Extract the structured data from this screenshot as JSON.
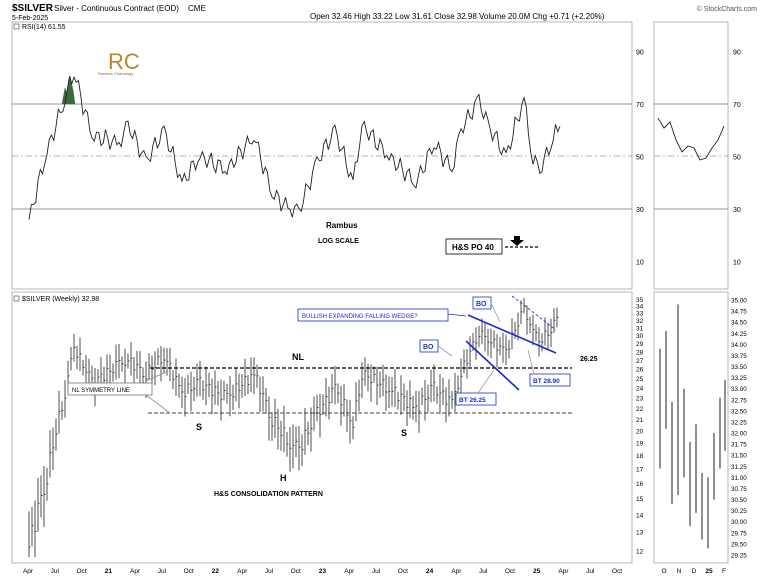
{
  "header": {
    "symbol": "$SILVER",
    "name": "Silver - Continuous Contract (EOD)",
    "exchange": "CME",
    "date": "5-Feb-2025",
    "source": "© StockCharts.com",
    "ohlc": "Open 32.46  High 33.22  Low 31.61  Close 32.98  Volume 20.0M  Chg +0.71 (+2.20%)"
  },
  "watermark": {
    "initials": "RC",
    "text": "Rambus Chartology"
  },
  "rsi_panel": {
    "label": "RSI(14) 61.55",
    "author": "Rambus",
    "scale_note": "LOG SCALE",
    "po_label": "H&S PO 40",
    "ticks": [
      "90",
      "70",
      "50",
      "30",
      "10"
    ]
  },
  "price_panel": {
    "label": "$SILVER (Weekly) 32.98",
    "ticks": [
      "35",
      "34",
      "33",
      "32",
      "31",
      "30",
      "29",
      "28",
      "27",
      "26",
      "25",
      "24",
      "23",
      "22",
      "21",
      "20",
      "19",
      "18",
      "17",
      "16",
      "15",
      "14",
      "13",
      "12"
    ],
    "annotations": {
      "wedge": "BULLISH EXPANDING FALLING WEDGE?",
      "bo1": "BO",
      "bo2": "BO",
      "nl": "NL",
      "nl_value": "26.25",
      "symmetry": "NL SYMMETRY LINE",
      "bt1": "BT 26.25",
      "bt2": "BT 28.90",
      "s_left": "S",
      "s_right": "S",
      "head": "H",
      "pattern": "H&S CONSOLIDATION PATTERN"
    }
  },
  "x_axis": [
    "Apr",
    "Jul",
    "Oct",
    "21",
    "Apr",
    "Jul",
    "Oct",
    "22",
    "Apr",
    "Jul",
    "Oct",
    "23",
    "Apr",
    "Jul",
    "Oct",
    "24",
    "Apr",
    "Jul",
    "Oct",
    "25",
    "Apr",
    "Jul",
    "Oct"
  ],
  "inset": {
    "ticks_rsi": [
      "90",
      "70",
      "50",
      "30",
      "10"
    ],
    "ticks_price": [
      "35.00",
      "34.75",
      "34.50",
      "34.25",
      "34.00",
      "33.75",
      "33.50",
      "33.25",
      "33.00",
      "32.75",
      "32.50",
      "32.25",
      "32.00",
      "31.75",
      "31.50",
      "31.25",
      "31.00",
      "30.75",
      "30.50",
      "30.25",
      "30.00",
      "29.75",
      "29.50",
      "29.25"
    ],
    "x_axis": [
      "O",
      "N",
      "D",
      "25",
      "F"
    ]
  },
  "chart_data": {
    "type": "line",
    "title": "$SILVER Silver - Continuous Contract (EOD) CME",
    "indicator": "RSI(14)",
    "rsi_last": 61.55,
    "rsi_range": [
      0,
      100
    ],
    "price_scale": "log",
    "price_range": [
      11.5,
      35.5
    ],
    "close_last": 32.98,
    "levels": {
      "neckline": 26.25,
      "symmetry_line": 21.4,
      "bt1": 26.25,
      "bt2": 28.9,
      "price_objective": 40
    },
    "series": [
      {
        "name": "$SILVER (Weekly)",
        "x": [
          "2020-03",
          "2020-05",
          "2020-07",
          "2020-08",
          "2020-10",
          "2021-01",
          "2021-02",
          "2021-04",
          "2021-06",
          "2021-08",
          "2021-10",
          "2022-01",
          "2022-04",
          "2022-06",
          "2022-08",
          "2022-09",
          "2022-11",
          "2023-01",
          "2023-03",
          "2023-04",
          "2023-07",
          "2023-10",
          "2023-12",
          "2024-02",
          "2024-03",
          "2024-05",
          "2024-06",
          "2024-08",
          "2024-10",
          "2024-11",
          "2024-12",
          "2025-01",
          "2025-02"
        ],
        "values": [
          12.2,
          16.5,
          23.5,
          28.5,
          24.5,
          26.5,
          27.0,
          25.5,
          27.5,
          23.5,
          24.5,
          23.0,
          25.5,
          21.0,
          19.0,
          18.5,
          21.5,
          24.0,
          20.5,
          25.5,
          24.0,
          22.0,
          24.0,
          22.5,
          25.5,
          30.5,
          29.5,
          28.0,
          33.5,
          30.5,
          29.5,
          31.0,
          32.98
        ]
      },
      {
        "name": "RSI(14)",
        "x": [
          "2020-03",
          "2020-05",
          "2020-07",
          "2020-08",
          "2020-10",
          "2021-01",
          "2021-02",
          "2021-04",
          "2021-06",
          "2021-08",
          "2021-10",
          "2022-01",
          "2022-04",
          "2022-06",
          "2022-08",
          "2022-09",
          "2022-11",
          "2023-01",
          "2023-03",
          "2023-04",
          "2023-07",
          "2023-10",
          "2023-12",
          "2024-02",
          "2024-03",
          "2024-05",
          "2024-06",
          "2024-08",
          "2024-10",
          "2024-11",
          "2024-12",
          "2025-01",
          "2025-02"
        ],
        "values": [
          26,
          52,
          72,
          82,
          58,
          55,
          62,
          48,
          60,
          40,
          50,
          45,
          58,
          36,
          30,
          29,
          48,
          60,
          40,
          62,
          50,
          40,
          55,
          45,
          60,
          72,
          62,
          50,
          72,
          48,
          46,
          55,
          61.55
        ]
      }
    ]
  }
}
